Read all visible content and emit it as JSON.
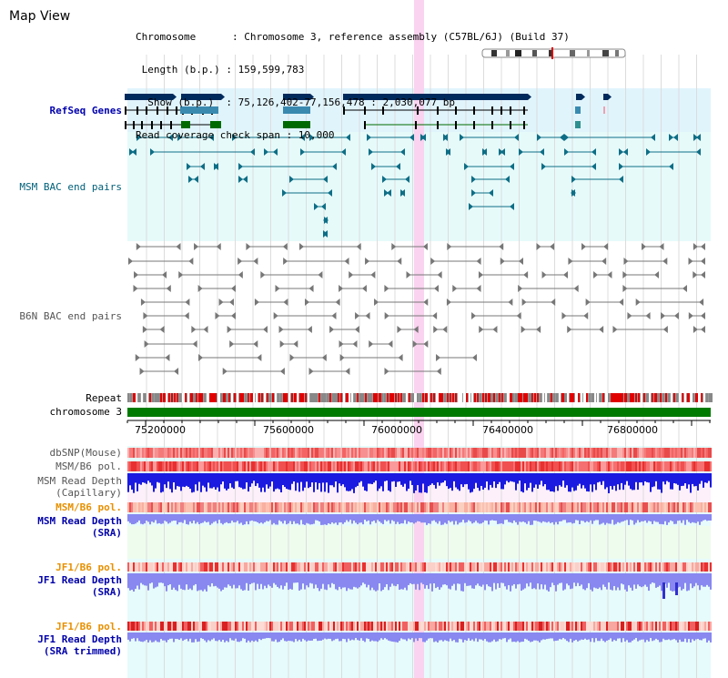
{
  "window": {
    "title": "Map View"
  },
  "info": {
    "lines": [
      "Chromosome      : Chromosome 3, reference assembly (C57BL/6J) (Build 37)",
      " Length (b.p.) : 159,599,783",
      "  Show (b.p.)  : 75,126,402-77,156,478 : 2,030,077 bp",
      "Read coverage check span : 10,000"
    ]
  },
  "tracks": {
    "refseq": "RefSeq Genes",
    "msm_bac": "MSM BAC end pairs",
    "b6n_bac": "B6N BAC end pairs",
    "repeat": "Repeat",
    "chromosome": "chromosome 3",
    "dbsnp": "dbSNP(Mouse)",
    "msm_b6_pol": "MSM/B6 pol.",
    "msm_read_cap_1": "MSM Read Depth",
    "msm_read_cap_2": "(Capillary)",
    "msm_b6_pol2": "MSM/B6 pol.",
    "msm_read_sra_1": "MSM Read Depth",
    "msm_read_sra_2": "(SRA)",
    "jf1_b6_pol": "JF1/B6 pol.",
    "jf1_read_sra_1": "JF1 Read Depth",
    "jf1_read_sra_2": "(SRA)",
    "jf1_b6_pol2": "JF1/B6 pol.",
    "jf1_read_trim_1": "JF1 Read Depth",
    "jf1_read_trim_2": "(SRA trimmed)"
  },
  "axis": {
    "ticks": [
      "75200000",
      "75600000",
      "76000000",
      "76400000",
      "76800000"
    ]
  },
  "colors": {
    "refseq_bg": "#e0f4fc",
    "bac_bg": "#e6fafa",
    "highlight": "#f9d3ef",
    "gene_dark": "#002a5c",
    "gene_mid": "#3a8ab0",
    "gene_green": "#006a00",
    "msm_feature": "#0e6e86",
    "b6n_feature": "#777777",
    "chromosome": "#007a00",
    "depth_blue": "#1a1ae0",
    "depth_light": "#8888f0"
  }
}
